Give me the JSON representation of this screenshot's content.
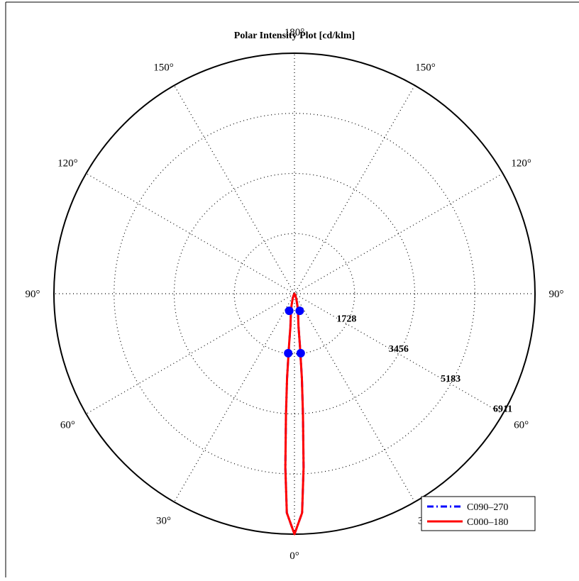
{
  "chart_data": {
    "type": "polar",
    "title": "Polar Intensity Plot [cd/klm]",
    "angle_labels": [
      {
        "deg": 0,
        "text": "0°"
      },
      {
        "deg": 30,
        "text": "30°"
      },
      {
        "deg": -30,
        "text": "30°"
      },
      {
        "deg": 60,
        "text": "60°"
      },
      {
        "deg": -60,
        "text": "60°"
      },
      {
        "deg": 90,
        "text": "90°"
      },
      {
        "deg": -90,
        "text": "90°"
      },
      {
        "deg": 120,
        "text": "120°"
      },
      {
        "deg": -120,
        "text": "120°"
      },
      {
        "deg": 150,
        "text": "150°"
      },
      {
        "deg": -150,
        "text": "150°"
      },
      {
        "deg": 180,
        "text": "180°"
      }
    ],
    "ring_values": [
      1728,
      3456,
      5183,
      6911
    ],
    "r_max": 6911,
    "grid": true,
    "legend_position": "bottom-right",
    "series": [
      {
        "name": "C090–270",
        "color": "#0000ff",
        "style": "dash-dot",
        "points": [
          {
            "angle": 0,
            "value": 6911
          },
          {
            "angle": 2,
            "value": 6300
          },
          {
            "angle": 3,
            "value": 5000
          },
          {
            "angle": 4,
            "value": 3500
          },
          {
            "angle": 5,
            "value": 2450
          },
          {
            "angle": 6,
            "value": 1500
          },
          {
            "angle": 7,
            "value": 950
          },
          {
            "angle": 10,
            "value": 600
          },
          {
            "angle": 14,
            "value": 350
          },
          {
            "angle": 20,
            "value": 150
          },
          {
            "angle": 30,
            "value": 40
          },
          {
            "angle": 90,
            "value": 0
          }
        ]
      },
      {
        "name": "C000–180",
        "color": "#ff0000",
        "style": "solid",
        "points": [
          {
            "angle": 0,
            "value": 6911
          },
          {
            "angle": 2,
            "value": 6300
          },
          {
            "angle": 3,
            "value": 5000
          },
          {
            "angle": 4,
            "value": 3500
          },
          {
            "angle": 5,
            "value": 2450
          },
          {
            "angle": 6,
            "value": 1500
          },
          {
            "angle": 7,
            "value": 950
          },
          {
            "angle": 10,
            "value": 600
          },
          {
            "angle": 14,
            "value": 350
          },
          {
            "angle": 20,
            "value": 150
          },
          {
            "angle": 30,
            "value": 40
          },
          {
            "angle": 90,
            "value": 0
          }
        ]
      }
    ],
    "markers": [
      {
        "angle": 17,
        "value": 515
      },
      {
        "angle": -17,
        "value": 515
      },
      {
        "angle": 6,
        "value": 1720
      },
      {
        "angle": -6,
        "value": 1720
      }
    ],
    "marker_color": "#0000ff"
  }
}
